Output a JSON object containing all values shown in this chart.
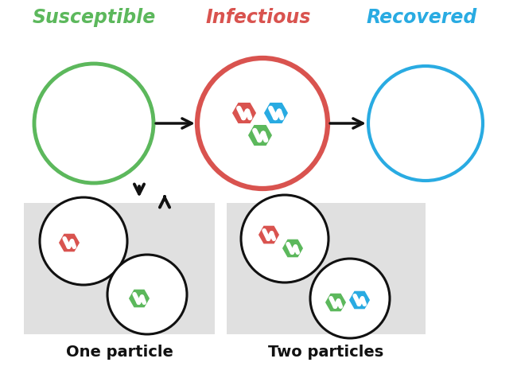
{
  "title_susceptible": "Susceptible",
  "title_infectious": "Infectious",
  "title_recovered": "Recovered",
  "color_susceptible": "#5cb85c",
  "color_infectious": "#d9534f",
  "color_recovered": "#29abe2",
  "color_black": "#111111",
  "color_bg_box": "#e0e0e0",
  "label_one_particle": "One particle",
  "label_two_particles": "Two particles",
  "virus_red": "#d9534f",
  "virus_green": "#5cb85c",
  "virus_blue": "#29abe2",
  "figw": 6.5,
  "figh": 4.75,
  "dpi": 100
}
